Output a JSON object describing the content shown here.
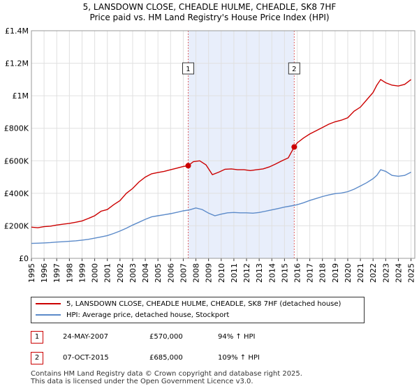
{
  "title_line1": "5, LANSDOWN CLOSE, CHEADLE HULME, CHEADLE, SK8 7HF",
  "title_line2": "Price paid vs. HM Land Registry's House Price Index (HPI)",
  "chart_data": {
    "type": "line",
    "title": "5, LANSDOWN CLOSE, CHEADLE HULME, CHEADLE, SK8 7HF — Price paid vs. HM Land Registry's House Price Index (HPI)",
    "xlim": [
      1995,
      2025.3
    ],
    "ylim": [
      0,
      1400000
    ],
    "y_ticks": [
      0,
      200000,
      400000,
      600000,
      800000,
      1000000,
      1200000,
      1400000
    ],
    "y_tick_labels": [
      "£0",
      "£200K",
      "£400K",
      "£600K",
      "£800K",
      "£1M",
      "£1.2M",
      "£1.4M"
    ],
    "x_ticks": [
      1995,
      1996,
      1997,
      1998,
      1999,
      2000,
      2001,
      2002,
      2003,
      2004,
      2005,
      2006,
      2007,
      2008,
      2009,
      2010,
      2011,
      2012,
      2013,
      2014,
      2015,
      2016,
      2017,
      2018,
      2019,
      2020,
      2021,
      2022,
      2023,
      2024,
      2025
    ],
    "shaded_region": [
      2007.39,
      2015.77
    ],
    "series": [
      {
        "name": "5, LANSDOWN CLOSE, CHEADLE HULME, CHEADLE, SK8 7HF (detached house)",
        "color": "#cc0000",
        "x": [
          1995,
          1995.5,
          1996,
          1996.5,
          1997,
          1997.5,
          1998,
          1998.5,
          1999,
          1999.5,
          2000,
          2000.5,
          2001,
          2001.5,
          2002,
          2002.5,
          2003,
          2003.5,
          2004,
          2004.5,
          2005,
          2005.5,
          2006,
          2006.5,
          2007,
          2007.39,
          2007.8,
          2008.3,
          2008.8,
          2009.3,
          2009.8,
          2010.3,
          2010.8,
          2011.3,
          2011.8,
          2012.3,
          2012.8,
          2013.3,
          2013.8,
          2014.3,
          2014.8,
          2015.3,
          2015.77,
          2016,
          2016.5,
          2017,
          2017.5,
          2018,
          2018.5,
          2019,
          2019.5,
          2020,
          2020.5,
          2021,
          2021.5,
          2022,
          2022.3,
          2022.6,
          2023,
          2023.5,
          2024,
          2024.5,
          2025
        ],
        "values": [
          192000,
          188000,
          195000,
          198000,
          205000,
          210000,
          215000,
          222000,
          230000,
          245000,
          262000,
          290000,
          300000,
          330000,
          355000,
          400000,
          430000,
          470000,
          500000,
          520000,
          528000,
          535000,
          545000,
          555000,
          565000,
          570000,
          595000,
          600000,
          575000,
          515000,
          530000,
          548000,
          550000,
          545000,
          545000,
          540000,
          545000,
          550000,
          562000,
          580000,
          600000,
          618000,
          685000,
          710000,
          740000,
          765000,
          785000,
          805000,
          825000,
          840000,
          850000,
          865000,
          905000,
          930000,
          975000,
          1020000,
          1065000,
          1100000,
          1080000,
          1065000,
          1060000,
          1070000,
          1100000
        ]
      },
      {
        "name": "HPI: Average price, detached house, Stockport",
        "color": "#5b8ac9",
        "x": [
          1995,
          1995.5,
          1996,
          1996.5,
          1997,
          1997.5,
          1998,
          1998.5,
          1999,
          1999.5,
          2000,
          2000.5,
          2001,
          2001.5,
          2002,
          2002.5,
          2003,
          2003.5,
          2004,
          2004.5,
          2005,
          2005.5,
          2006,
          2006.5,
          2007,
          2007.5,
          2008,
          2008.5,
          2009,
          2009.5,
          2010,
          2010.5,
          2011,
          2011.5,
          2012,
          2012.5,
          2013,
          2013.5,
          2014,
          2014.5,
          2015,
          2015.5,
          2016,
          2016.5,
          2017,
          2017.5,
          2018,
          2018.5,
          2019,
          2019.5,
          2020,
          2020.5,
          2021,
          2021.5,
          2022,
          2022.3,
          2022.6,
          2023,
          2023.5,
          2024,
          2024.5,
          2025
        ],
        "values": [
          92000,
          93000,
          95000,
          97000,
          100000,
          102000,
          105000,
          108000,
          112000,
          117000,
          124000,
          132000,
          140000,
          153000,
          168000,
          185000,
          205000,
          222000,
          240000,
          255000,
          262000,
          268000,
          275000,
          283000,
          292000,
          298000,
          310000,
          300000,
          278000,
          262000,
          272000,
          280000,
          282000,
          280000,
          280000,
          278000,
          282000,
          290000,
          298000,
          306000,
          315000,
          322000,
          330000,
          342000,
          356000,
          368000,
          380000,
          390000,
          398000,
          402000,
          410000,
          425000,
          445000,
          465000,
          490000,
          510000,
          545000,
          535000,
          510000,
          505000,
          510000,
          530000
        ]
      }
    ],
    "transactions": [
      {
        "marker": "1",
        "date": "24-MAY-2007",
        "price": "£570,000",
        "hpi": "94% ↑ HPI",
        "x": 2007.39,
        "value": 570000
      },
      {
        "marker": "2",
        "date": "07-OCT-2015",
        "price": "£685,000",
        "hpi": "109% ↑ HPI",
        "x": 2015.77,
        "value": 685000
      }
    ]
  },
  "legend": {
    "series1_label": "5, LANSDOWN CLOSE, CHEADLE HULME, CHEADLE, SK8 7HF (detached house)",
    "series2_label": "HPI: Average price, detached house, Stockport",
    "series1_color": "#cc0000",
    "series2_color": "#5b8ac9"
  },
  "footer_line1": "Contains HM Land Registry data © Crown copyright and database right 2025.",
  "footer_line2": "This data is licensed under the Open Government Licence v3.0."
}
